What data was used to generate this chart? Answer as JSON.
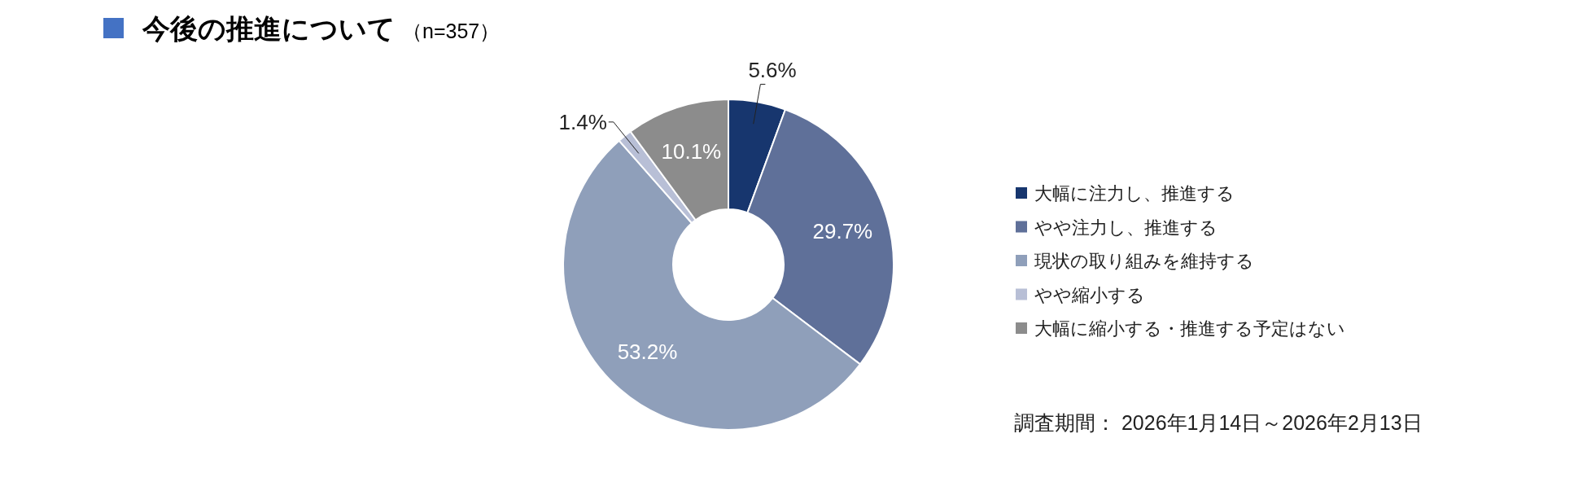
{
  "chart_data": {
    "type": "donut",
    "title": "今後の推進について",
    "subtitle": "（n=357）",
    "categories": [
      "大幅に注力し、推進する",
      "やや注力し、推進する",
      "現状の取り組みを維持する",
      "やや縮小する",
      "大幅に縮小する・推進する予定はない"
    ],
    "values": [
      5.6,
      29.7,
      53.2,
      1.4,
      10.1
    ],
    "colors": [
      "#17366e",
      "#5f7099",
      "#8f9fba",
      "#b8bfd6",
      "#8c8c8c"
    ],
    "value_labels": [
      "5.6%",
      "29.7%",
      "53.2%",
      "1.4%",
      "10.1%"
    ],
    "legend": "right",
    "annotations": [
      "調査期間： 2026年1月14日～2026年2月13日"
    ]
  }
}
